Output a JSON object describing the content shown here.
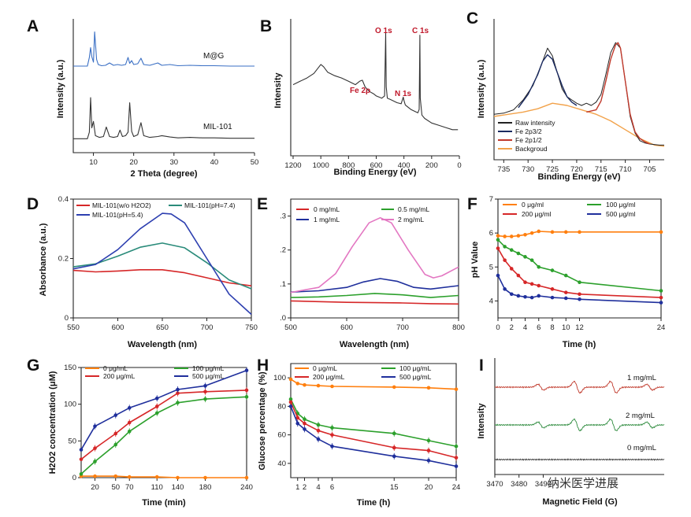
{
  "watermark": "纳米医学进展",
  "chart_data": [
    {
      "id": "A",
      "type": "line",
      "panel_label": "A",
      "xlabel": "2 Theta (degree)",
      "ylabel": "Intensity (a.u.)",
      "xlim": [
        5,
        50
      ],
      "xticks": [
        10,
        20,
        30,
        40,
        50
      ],
      "series": [
        {
          "name": "M@G",
          "color": "#3a6fc4",
          "x": [
            5,
            8.5,
            9.0,
            9.3,
            9.6,
            10.0,
            10.3,
            10.8,
            11.2,
            12,
            13,
            14,
            15,
            16,
            17,
            18,
            18.6,
            19,
            19.5,
            20,
            21,
            21.8,
            22.5,
            24,
            26,
            27,
            29,
            31,
            34,
            37,
            40,
            44,
            47,
            50
          ],
          "y": [
            0.08,
            0.08,
            0.3,
            0.55,
            0.32,
            0.18,
            0.95,
            0.25,
            0.12,
            0.09,
            0.1,
            0.16,
            0.1,
            0.12,
            0.1,
            0.12,
            0.3,
            0.15,
            0.22,
            0.12,
            0.14,
            0.28,
            0.12,
            0.1,
            0.16,
            0.1,
            0.12,
            0.09,
            0.1,
            0.09,
            0.09,
            0.08,
            0.08,
            0.08
          ]
        },
        {
          "name": "MIL-101",
          "color": "#333333",
          "x": [
            5,
            8.5,
            9.0,
            9.3,
            9.6,
            10.0,
            10.5,
            11.5,
            12.5,
            13.2,
            14,
            15,
            16,
            16.6,
            17.2,
            18,
            18.6,
            19,
            19.5,
            20,
            21,
            21.8,
            22.5,
            24,
            26,
            27,
            29,
            31,
            34,
            37,
            40,
            44,
            47,
            50
          ],
          "y": [
            0.05,
            0.05,
            0.2,
            1.0,
            0.3,
            0.45,
            0.12,
            0.08,
            0.1,
            0.32,
            0.1,
            0.08,
            0.1,
            0.25,
            0.1,
            0.12,
            0.2,
            0.88,
            0.22,
            0.1,
            0.14,
            0.42,
            0.12,
            0.08,
            0.1,
            0.12,
            0.09,
            0.07,
            0.08,
            0.07,
            0.07,
            0.06,
            0.06,
            0.06
          ]
        }
      ]
    },
    {
      "id": "B",
      "type": "line",
      "panel_label": "B",
      "xlabel": "Binding Energy (eV)",
      "ylabel": "Intensity",
      "xlim": [
        1200,
        0
      ],
      "xticks": [
        1200,
        1000,
        800,
        600,
        400,
        200,
        0
      ],
      "annotations": [
        "O 1s",
        "C 1s",
        "Fe 2ρ",
        "N 1s"
      ],
      "series": [
        {
          "name": "survey",
          "color": "#333333",
          "x": [
            1200,
            1150,
            1100,
            1050,
            1000,
            980,
            950,
            900,
            850,
            800,
            750,
            720,
            700,
            680,
            650,
            620,
            600,
            560,
            540,
            532,
            528,
            520,
            500,
            450,
            420,
            405,
            400,
            390,
            350,
            300,
            290,
            285,
            282,
            270,
            250,
            200,
            150,
            100,
            50,
            10
          ],
          "y": [
            0.52,
            0.55,
            0.58,
            0.62,
            0.7,
            0.68,
            0.63,
            0.6,
            0.58,
            0.55,
            0.52,
            0.55,
            0.56,
            0.5,
            0.46,
            0.44,
            0.42,
            0.4,
            0.42,
            0.98,
            0.5,
            0.4,
            0.39,
            0.36,
            0.35,
            0.41,
            0.38,
            0.34,
            0.3,
            0.27,
            0.3,
            0.96,
            0.4,
            0.25,
            0.22,
            0.18,
            0.16,
            0.14,
            0.12,
            0.12
          ]
        }
      ]
    },
    {
      "id": "C",
      "type": "line",
      "panel_label": "C",
      "xlabel": "Binding Energy (eV)",
      "ylabel": "Intensity (a.u.)",
      "xlim": [
        737,
        702
      ],
      "xticks": [
        735,
        730,
        725,
        720,
        715,
        710,
        705
      ],
      "legend": [
        "Raw intensity",
        "Fe 2p3/2",
        "Fe 2p1/2",
        "Backgroud"
      ],
      "series": [
        {
          "name": "Raw intensity",
          "color": "#222222",
          "x": [
            737,
            735,
            733,
            731,
            729,
            727,
            726,
            725,
            724,
            723,
            722,
            721,
            720,
            719,
            718,
            717,
            716,
            715,
            714,
            713,
            712,
            711,
            710,
            709,
            708,
            707,
            706,
            705,
            703,
            702
          ],
          "y": [
            0.32,
            0.33,
            0.36,
            0.45,
            0.58,
            0.8,
            0.92,
            0.85,
            0.7,
            0.55,
            0.48,
            0.45,
            0.42,
            0.4,
            0.42,
            0.4,
            0.43,
            0.5,
            0.68,
            0.88,
            0.97,
            0.92,
            0.62,
            0.3,
            0.15,
            0.08,
            0.06,
            0.05,
            0.04,
            0.04
          ]
        },
        {
          "name": "Fe 2p3/2",
          "color": "#1a2a60",
          "x": [
            732,
            730,
            728,
            727,
            726,
            725,
            724,
            723,
            722,
            721,
            720
          ],
          "y": [
            0.38,
            0.5,
            0.68,
            0.8,
            0.86,
            0.82,
            0.7,
            0.58,
            0.48,
            0.43,
            0.4
          ]
        },
        {
          "name": "Fe 2p1/2",
          "color": "#c0392b",
          "x": [
            718,
            716,
            715,
            714,
            713,
            712,
            711.5,
            711,
            710,
            709,
            708,
            707,
            706,
            705
          ],
          "y": [
            0.34,
            0.36,
            0.44,
            0.62,
            0.82,
            0.95,
            0.97,
            0.92,
            0.62,
            0.32,
            0.16,
            0.1,
            0.07,
            0.05
          ]
        },
        {
          "name": "Backgroud",
          "color": "#f2a24a",
          "x": [
            737,
            734,
            731,
            728,
            725,
            722,
            719,
            716,
            713,
            710,
            707,
            704,
            702
          ],
          "y": [
            0.3,
            0.32,
            0.34,
            0.37,
            0.42,
            0.4,
            0.36,
            0.32,
            0.26,
            0.18,
            0.1,
            0.04,
            0.03
          ]
        }
      ]
    },
    {
      "id": "D",
      "type": "line",
      "panel_label": "D",
      "xlabel": "Wavelength (nm)",
      "ylabel": "Absorbance (a.u.)",
      "xlim": [
        550,
        750
      ],
      "ylim": [
        0,
        0.4
      ],
      "xticks": [
        550,
        600,
        650,
        700,
        750
      ],
      "yticks": [
        0.0,
        0.2,
        0.4
      ],
      "series": [
        {
          "name": "MIL-101(w/o H2O2)",
          "color": "#d62728",
          "x": [
            550,
            575,
            600,
            625,
            650,
            675,
            700,
            725,
            750
          ],
          "y": [
            0.16,
            0.155,
            0.158,
            0.162,
            0.162,
            0.152,
            0.135,
            0.118,
            0.108
          ]
        },
        {
          "name": "MIL-101(pH=7.4)",
          "color": "#2a8b7a",
          "x": [
            550,
            575,
            600,
            625,
            650,
            675,
            700,
            725,
            750
          ],
          "y": [
            0.172,
            0.182,
            0.208,
            0.238,
            0.252,
            0.236,
            0.186,
            0.128,
            0.098
          ]
        },
        {
          "name": "MIL-101(pH=5.4)",
          "color": "#2d3fb0",
          "x": [
            550,
            575,
            600,
            625,
            650,
            660,
            675,
            700,
            725,
            750
          ],
          "y": [
            0.165,
            0.18,
            0.23,
            0.3,
            0.352,
            0.35,
            0.32,
            0.2,
            0.08,
            0.012
          ]
        }
      ]
    },
    {
      "id": "E",
      "type": "line",
      "panel_label": "E",
      "xlabel": "Wavelength (nm)",
      "ylabel": "",
      "xlim": [
        500,
        800
      ],
      "ylim": [
        0,
        0.35
      ],
      "xticks": [
        500,
        600,
        700,
        800
      ],
      "yticks": [
        0.0,
        0.1,
        0.2,
        0.3
      ],
      "ytick_labels": [
        ".0",
        ".1",
        ".2",
        ".3"
      ],
      "series": [
        {
          "name": "0 mg/mL",
          "color": "#d62728",
          "x": [
            500,
            550,
            600,
            650,
            700,
            750,
            800
          ],
          "y": [
            0.05,
            0.048,
            0.046,
            0.045,
            0.044,
            0.042,
            0.041
          ]
        },
        {
          "name": "0.5 mg/mL",
          "color": "#2ca02c",
          "x": [
            500,
            550,
            600,
            650,
            700,
            750,
            800
          ],
          "y": [
            0.06,
            0.062,
            0.066,
            0.072,
            0.068,
            0.06,
            0.066
          ]
        },
        {
          "name": "1 mg/mL",
          "color": "#1f2f9c",
          "x": [
            500,
            550,
            600,
            630,
            660,
            690,
            720,
            750,
            800
          ],
          "y": [
            0.076,
            0.08,
            0.09,
            0.106,
            0.116,
            0.108,
            0.09,
            0.085,
            0.095
          ]
        },
        {
          "name": "2 mg/mL",
          "color": "#e377c2",
          "x": [
            500,
            550,
            580,
            610,
            640,
            660,
            680,
            710,
            740,
            755,
            770,
            800
          ],
          "y": [
            0.075,
            0.09,
            0.13,
            0.21,
            0.28,
            0.295,
            0.28,
            0.2,
            0.128,
            0.118,
            0.124,
            0.15
          ]
        }
      ]
    },
    {
      "id": "F",
      "type": "line",
      "panel_label": "F",
      "xlabel": "Time (h)",
      "ylabel": "pH Value",
      "xlim": [
        0,
        24
      ],
      "ylim": [
        3.5,
        7
      ],
      "xticks": [
        0,
        2,
        4,
        6,
        8,
        10,
        12,
        24
      ],
      "yticks": [
        4,
        5,
        6,
        7
      ],
      "series": [
        {
          "name": "0 μg/ml",
          "color": "#ff7f0e",
          "x": [
            0,
            1,
            2,
            3,
            4,
            5,
            6,
            8,
            10,
            12,
            24
          ],
          "y": [
            5.92,
            5.9,
            5.9,
            5.92,
            5.95,
            6.0,
            6.05,
            6.03,
            6.03,
            6.03,
            6.03
          ]
        },
        {
          "name": "100 μg/ml",
          "color": "#2ca02c",
          "x": [
            0,
            1,
            2,
            3,
            4,
            5,
            6,
            8,
            10,
            12,
            24
          ],
          "y": [
            5.8,
            5.6,
            5.5,
            5.4,
            5.3,
            5.2,
            5.0,
            4.9,
            4.75,
            4.55,
            4.3
          ]
        },
        {
          "name": "200 μg/ml",
          "color": "#d62728",
          "x": [
            0,
            1,
            2,
            3,
            4,
            5,
            6,
            8,
            10,
            12,
            24
          ],
          "y": [
            5.55,
            5.2,
            4.95,
            4.75,
            4.55,
            4.5,
            4.45,
            4.35,
            4.25,
            4.2,
            4.1
          ]
        },
        {
          "name": "500 μg/ml",
          "color": "#1f2f9c",
          "x": [
            0,
            1,
            2,
            3,
            4,
            5,
            6,
            8,
            10,
            12,
            24
          ],
          "y": [
            4.75,
            4.35,
            4.2,
            4.15,
            4.12,
            4.1,
            4.15,
            4.1,
            4.08,
            4.05,
            3.95
          ]
        }
      ]
    },
    {
      "id": "G",
      "type": "line",
      "panel_label": "G",
      "xlabel": "Time (min)",
      "ylabel": "H2O2 concentration (μM)",
      "xlim": [
        0,
        240
      ],
      "ylim": [
        0,
        150
      ],
      "xticks": [
        20,
        50,
        70,
        110,
        140,
        180,
        240
      ],
      "yticks": [
        0,
        50,
        100,
        150
      ],
      "series": [
        {
          "name": "0 μg/mL",
          "color": "#ff7f0e",
          "x": [
            0,
            20,
            50,
            70,
            110,
            140,
            180,
            240
          ],
          "y": [
            2,
            2,
            2,
            1,
            1,
            0,
            0,
            0
          ]
        },
        {
          "name": "100 μg/mL",
          "color": "#2ca02c",
          "x": [
            0,
            20,
            50,
            70,
            110,
            140,
            180,
            240
          ],
          "y": [
            5,
            22,
            45,
            63,
            88,
            102,
            107,
            110
          ]
        },
        {
          "name": "200 μg/mL",
          "color": "#d62728",
          "x": [
            0,
            20,
            50,
            70,
            110,
            140,
            180,
            240
          ],
          "y": [
            25,
            40,
            60,
            75,
            97,
            115,
            117,
            119
          ]
        },
        {
          "name": "500 μg/mL",
          "color": "#1f2f9c",
          "x": [
            0,
            20,
            50,
            70,
            110,
            140,
            180,
            240
          ],
          "y": [
            38,
            70,
            85,
            95,
            108,
            120,
            125,
            146
          ]
        }
      ]
    },
    {
      "id": "H",
      "type": "line",
      "panel_label": "H",
      "xlabel": "Time (h)",
      "ylabel": "Glucose percentage (%)",
      "xlim": [
        0,
        24
      ],
      "ylim": [
        30,
        110
      ],
      "xticks": [
        1,
        2,
        4,
        6,
        15,
        20,
        24
      ],
      "yticks": [
        40,
        60,
        80,
        100
      ],
      "series": [
        {
          "name": "0 μg/mL",
          "color": "#ff7f0e",
          "x": [
            0,
            1,
            2,
            4,
            6,
            15,
            20,
            24
          ],
          "y": [
            99,
            96,
            95,
            94.5,
            94,
            93.5,
            93,
            92
          ]
        },
        {
          "name": "100 μg/mL",
          "color": "#2ca02c",
          "x": [
            0,
            1,
            2,
            4,
            6,
            15,
            20,
            24
          ],
          "y": [
            85,
            75,
            71,
            67,
            65,
            61,
            56,
            52
          ]
        },
        {
          "name": "200 μg/mL",
          "color": "#d62728",
          "x": [
            0,
            1,
            2,
            4,
            6,
            15,
            20,
            24
          ],
          "y": [
            83,
            72,
            68,
            63,
            60,
            51,
            49,
            44
          ]
        },
        {
          "name": "500 μg/mL",
          "color": "#1f2f9c",
          "x": [
            0,
            1,
            2,
            4,
            6,
            15,
            20,
            24
          ],
          "y": [
            80,
            68,
            64,
            57,
            52,
            45,
            42,
            38
          ]
        }
      ]
    },
    {
      "id": "I",
      "type": "line",
      "panel_label": "I",
      "xlabel": "Magnetic Field (G)",
      "ylabel": "Intensity",
      "xlim": [
        3470,
        3540
      ],
      "xticks": [
        3470,
        3480,
        3490
      ],
      "series": [
        {
          "name": "1 mg/mL",
          "color": "#c0392b",
          "amp": 1.0
        },
        {
          "name": "2 mg/mL",
          "color": "#2e8b3e",
          "amp": 1.0
        },
        {
          "name": "0 mg/mL",
          "color": "#333333",
          "amp": 0.0
        }
      ]
    }
  ]
}
